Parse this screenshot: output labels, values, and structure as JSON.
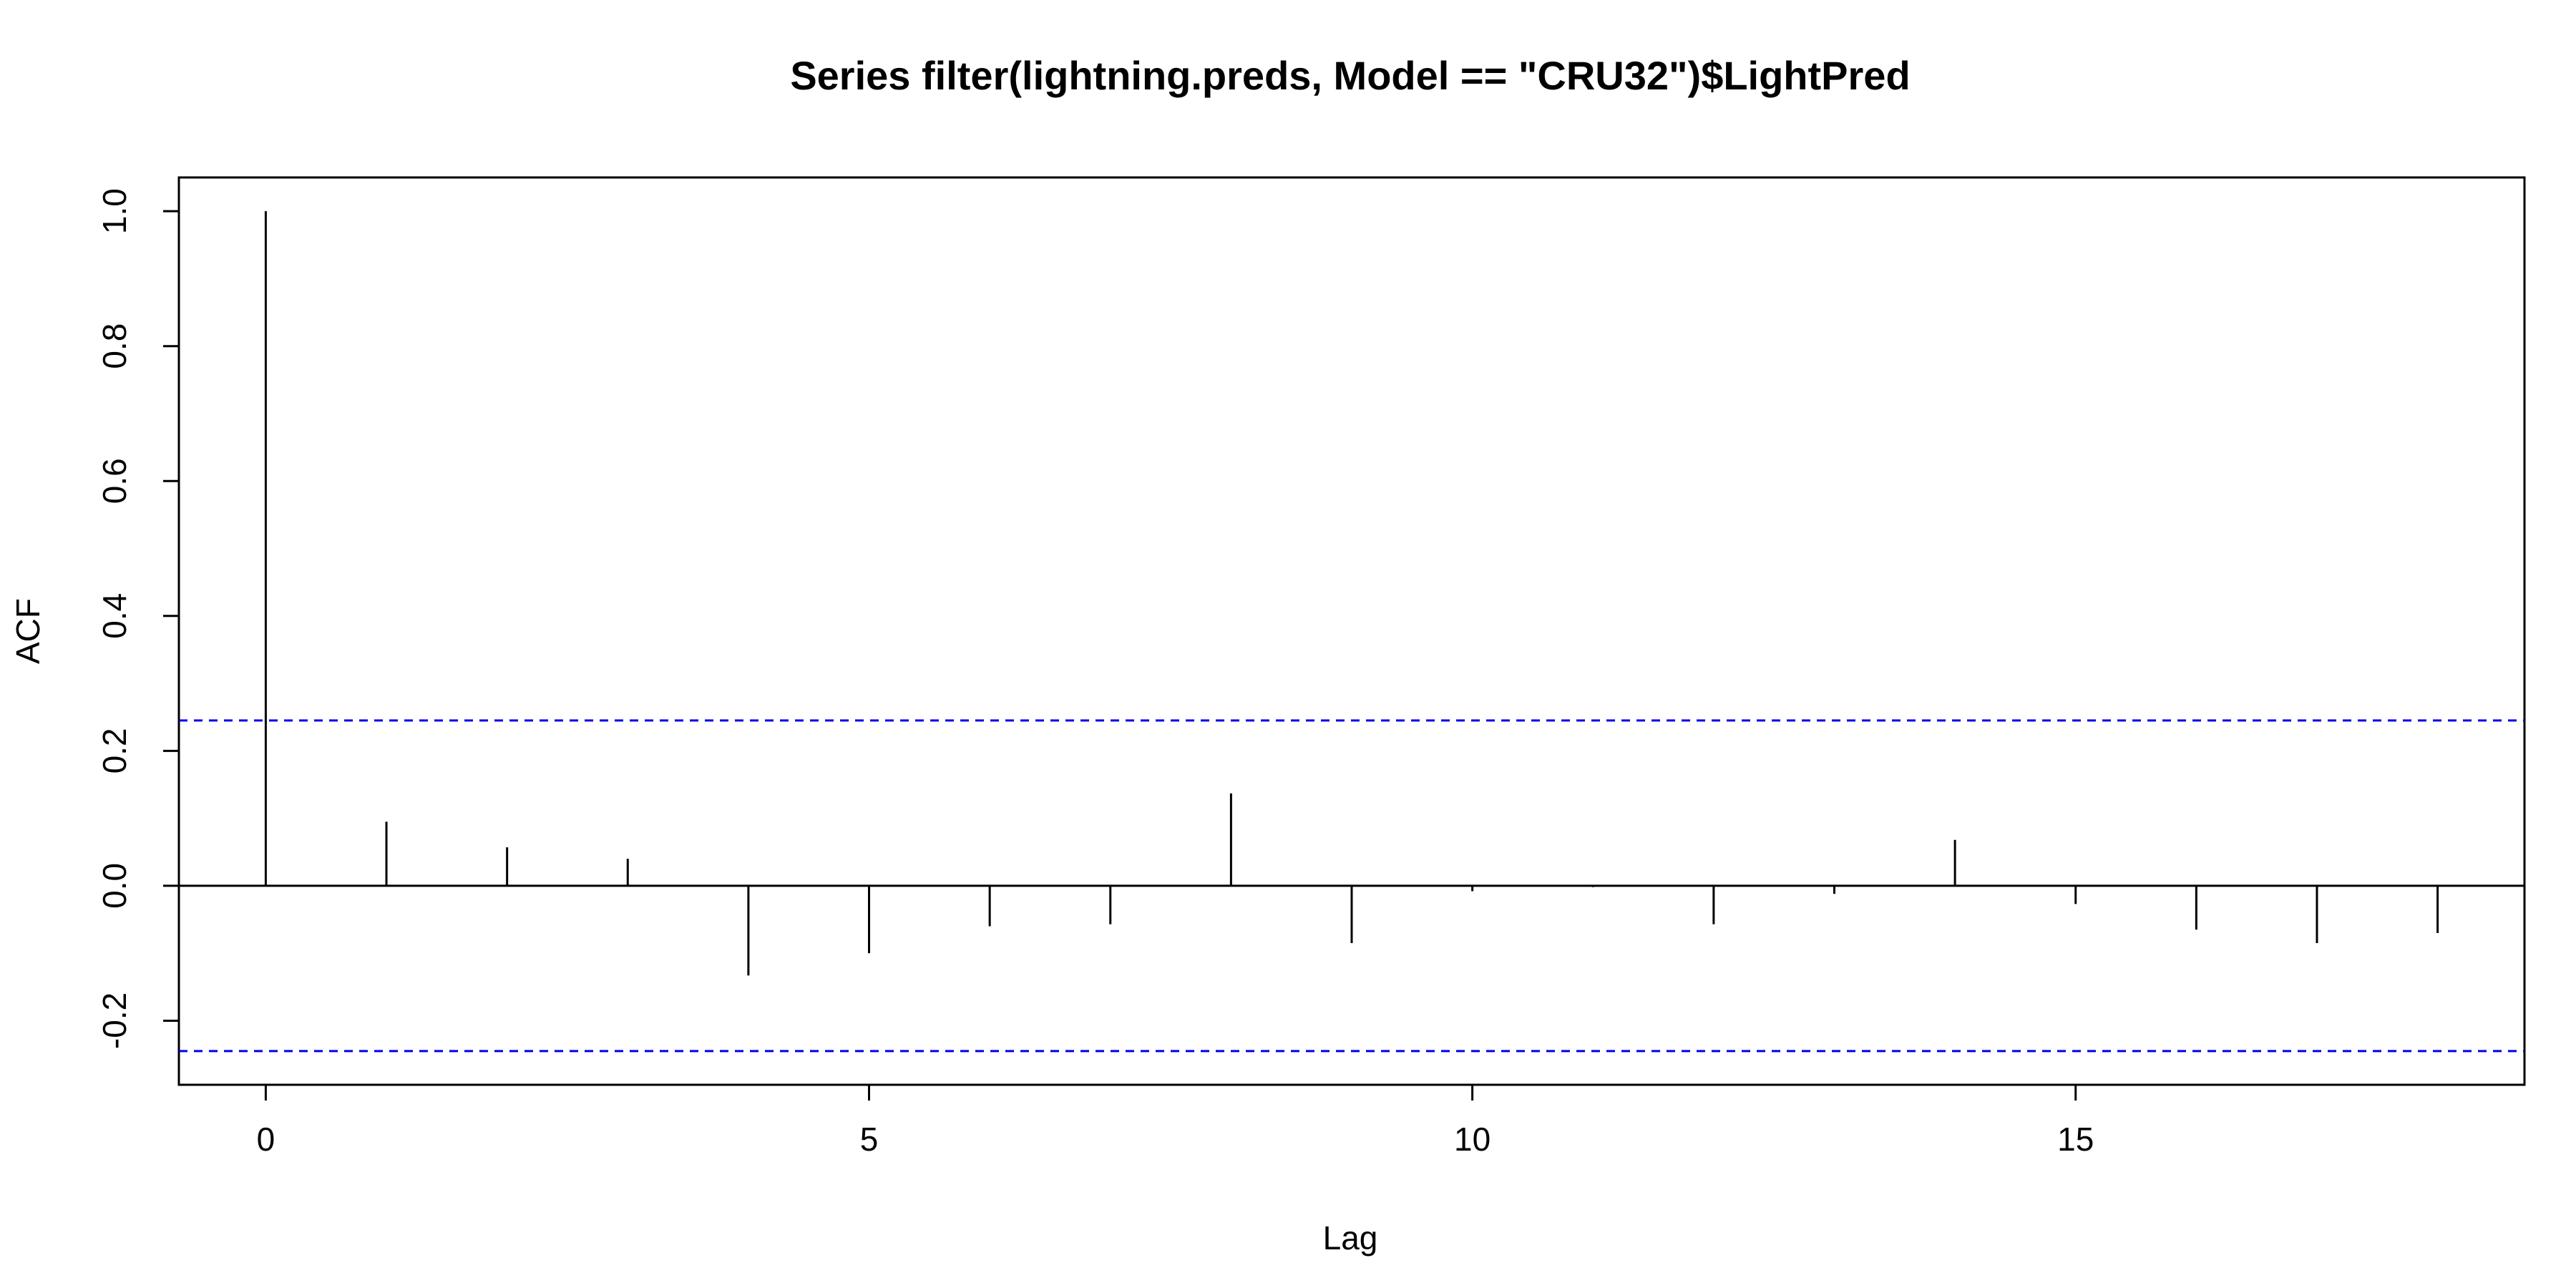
{
  "chart_data": {
    "type": "bar",
    "title": "Series  filter(lightning.preds, Model == \"CRU32\")$LightPred",
    "xlabel": "Lag",
    "ylabel": "ACF",
    "xlim": [
      -0.72,
      18.72
    ],
    "ylim": [
      -0.295,
      1.05
    ],
    "x_ticks": [
      0,
      5,
      10,
      15
    ],
    "x_tick_labels": [
      "0",
      "5",
      "10",
      "15"
    ],
    "y_ticks": [
      -0.2,
      0.0,
      0.2,
      0.4,
      0.6,
      0.8,
      1.0
    ],
    "y_tick_labels": [
      "-0.2",
      "0.0",
      "0.2",
      "0.4",
      "0.6",
      "0.8",
      "1.0"
    ],
    "lags": [
      0,
      1,
      2,
      3,
      4,
      5,
      6,
      7,
      8,
      9,
      10,
      11,
      12,
      13,
      14,
      15,
      16,
      17,
      18
    ],
    "values": [
      1.0,
      0.095,
      0.057,
      0.04,
      -0.133,
      -0.1,
      -0.06,
      -0.057,
      0.137,
      -0.085,
      -0.008,
      -0.002,
      -0.057,
      -0.012,
      0.068,
      -0.027,
      -0.065,
      -0.085,
      -0.07
    ],
    "confidence_bounds": [
      0.245,
      -0.245
    ],
    "confidence_color": "#0000ee",
    "grid": false,
    "legend": "none"
  }
}
